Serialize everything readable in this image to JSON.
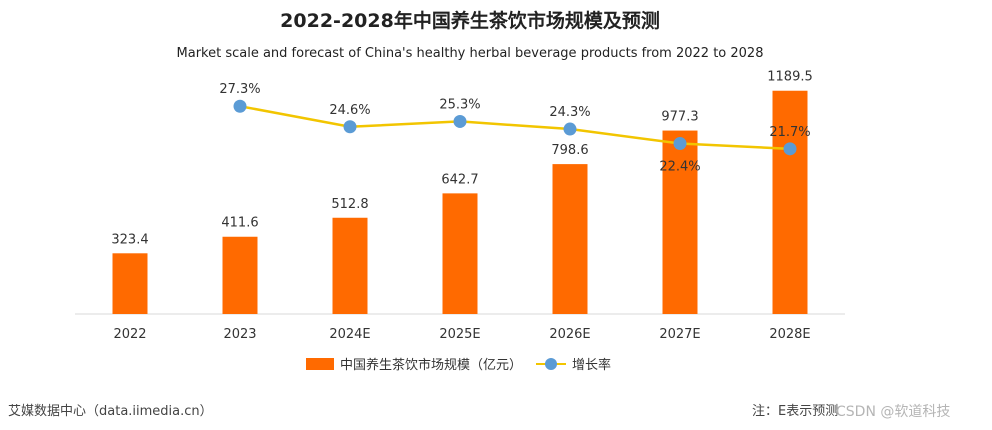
{
  "colors": {
    "bar": "#ff6a00",
    "line": "#f2c500",
    "marker": "#5b9bd5",
    "axis": "#d9d9d9"
  },
  "chart_data": {
    "type": "bar",
    "title": "2022-2028年中国养生茶饮市场规模及预测",
    "subtitle": "Market scale and forecast of China's healthy herbal beverage products from 2022 to 2028",
    "categories": [
      "2022",
      "2023",
      "2024E",
      "2025E",
      "2026E",
      "2027E",
      "2028E"
    ],
    "series": [
      {
        "name": "中国养生茶饮市场规模（亿元）",
        "type": "bar",
        "values": [
          323.4,
          411.6,
          512.8,
          642.7,
          798.6,
          977.3,
          1189.5
        ],
        "labels": [
          "323.4",
          "411.6",
          "512.8",
          "642.7",
          "798.6",
          "977.3",
          "1189.5"
        ]
      },
      {
        "name": "增长率",
        "type": "line",
        "values": [
          null,
          27.3,
          24.6,
          25.3,
          24.3,
          22.4,
          21.7
        ],
        "labels": [
          "",
          "27.3%",
          "24.6%",
          "25.3%",
          "24.3%",
          "22.4%",
          "21.7%"
        ]
      }
    ],
    "ylim": [
      0,
      1300
    ],
    "y2lim": [
      0,
      36
    ],
    "grid": false,
    "legend_position": "bottom-center"
  },
  "footer": {
    "source": "艾媒数据中心（data.iimedia.cn）",
    "note": "注：E表示预测",
    "watermark": "CSDN @软道科技"
  }
}
